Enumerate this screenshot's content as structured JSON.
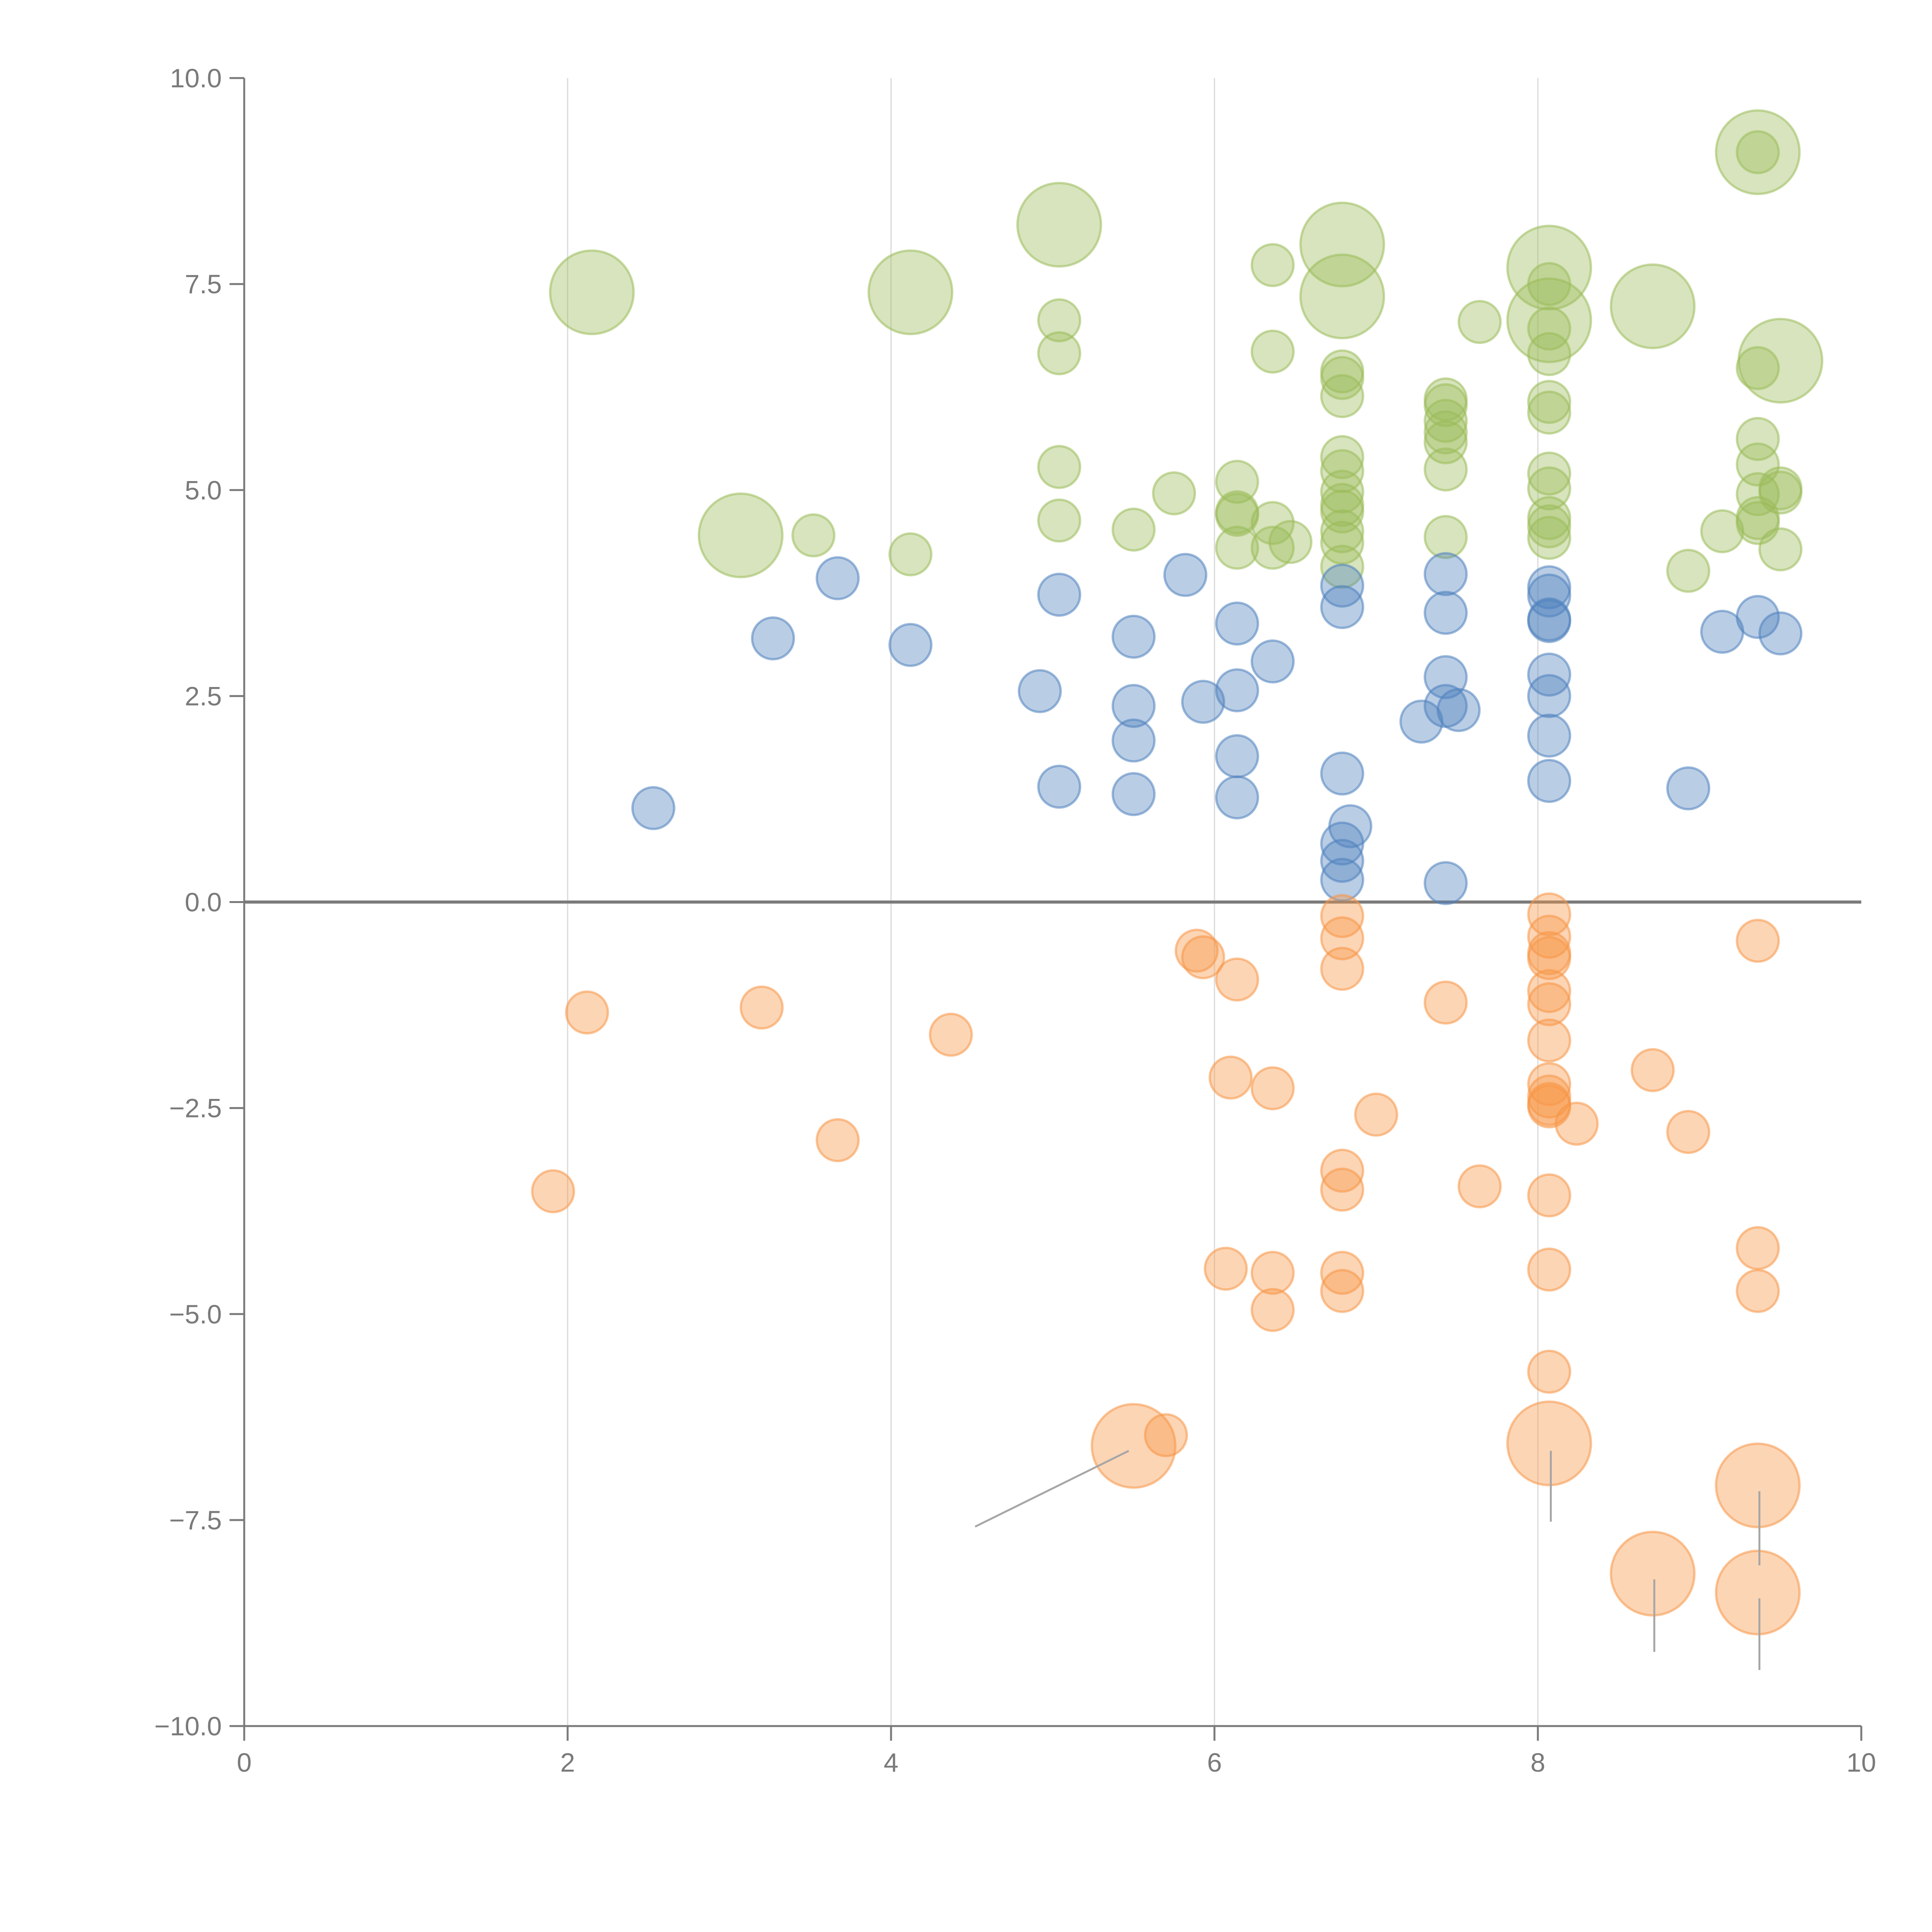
{
  "chart_data": {
    "type": "scatter",
    "title": "",
    "xlabel": "",
    "ylabel": "",
    "xlim": [
      0,
      10
    ],
    "ylim": [
      -10,
      10
    ],
    "x_ticks": [
      "0",
      "2",
      "4",
      "6",
      "8",
      "10"
    ],
    "x_tick_values": [
      0,
      2,
      4,
      6,
      8,
      10
    ],
    "y_ticks": [
      "10.0",
      "7.5",
      "5.0",
      "2.5",
      "0.0",
      "−2.5",
      "−5.0",
      "−7.5",
      "−10.0"
    ],
    "y_tick_values": [
      10,
      7.5,
      5,
      2.5,
      0,
      -2.5,
      -5,
      -7.5,
      -10
    ],
    "vertical_grid": true,
    "zero_line": true,
    "legend": "none",
    "series": [
      {
        "color": "#9bbb59",
        "points": [
          [
            2.15,
            7.4,
            3
          ],
          [
            4.12,
            7.4,
            3
          ],
          [
            5.04,
            8.22,
            3
          ],
          [
            6.79,
            7.98,
            3
          ],
          [
            6.79,
            7.35,
            3
          ],
          [
            8.07,
            7.7,
            3
          ],
          [
            8.07,
            7.06,
            3
          ],
          [
            8.71,
            7.23,
            3
          ],
          [
            9.36,
            9.1,
            3
          ],
          [
            9.5,
            6.57,
            3
          ],
          [
            3.07,
            4.45,
            3
          ],
          [
            6.36,
            7.73,
            1
          ],
          [
            5.04,
            7.06,
            1
          ],
          [
            5.04,
            6.66,
            1
          ],
          [
            6.36,
            6.68,
            1
          ],
          [
            7.64,
            7.04,
            1
          ],
          [
            6.79,
            6.44,
            1
          ],
          [
            6.79,
            6.36,
            1
          ],
          [
            6.79,
            6.14,
            1
          ],
          [
            7.43,
            6.1,
            1
          ],
          [
            7.43,
            6.03,
            1
          ],
          [
            7.43,
            5.84,
            1
          ],
          [
            7.43,
            5.7,
            1
          ],
          [
            7.43,
            5.58,
            1
          ],
          [
            7.43,
            5.25,
            1
          ],
          [
            8.07,
            6.07,
            1
          ],
          [
            8.07,
            5.94,
            1
          ],
          [
            8.07,
            6.96,
            1
          ],
          [
            8.07,
            6.65,
            1
          ],
          [
            8.07,
            7.5,
            1
          ],
          [
            9.36,
            6.48,
            1
          ],
          [
            9.36,
            5.62,
            1
          ],
          [
            9.36,
            5.31,
            1
          ],
          [
            9.36,
            4.95,
            1
          ],
          [
            9.36,
            4.66,
            1
          ],
          [
            9.36,
            4.6,
            1
          ],
          [
            9.5,
            5.02,
            1
          ],
          [
            9.5,
            4.97,
            1
          ],
          [
            9.5,
            4.28,
            1
          ],
          [
            9.14,
            4.5,
            1
          ],
          [
            8.93,
            4.02,
            1
          ],
          [
            9.36,
            9.1,
            1
          ],
          [
            5.04,
            5.28,
            1
          ],
          [
            5.04,
            4.63,
            1
          ],
          [
            5.5,
            4.52,
            1
          ],
          [
            5.75,
            4.96,
            1
          ],
          [
            6.14,
            5.1,
            1
          ],
          [
            6.14,
            4.73,
            1
          ],
          [
            6.14,
            4.7,
            1
          ],
          [
            6.14,
            4.3,
            1
          ],
          [
            6.36,
            4.6,
            1
          ],
          [
            6.36,
            4.3,
            1
          ],
          [
            6.47,
            4.37,
            1
          ],
          [
            6.79,
            5.4,
            1
          ],
          [
            6.79,
            5.23,
            1
          ],
          [
            6.79,
            4.98,
            1
          ],
          [
            6.79,
            4.82,
            1
          ],
          [
            6.79,
            4.74,
            1
          ],
          [
            6.79,
            4.5,
            1
          ],
          [
            6.79,
            4.36,
            1
          ],
          [
            6.79,
            4.07,
            1
          ],
          [
            7.43,
            4.43,
            1
          ],
          [
            8.07,
            5.2,
            1
          ],
          [
            8.07,
            5.02,
            1
          ],
          [
            8.07,
            4.66,
            1
          ],
          [
            8.07,
            4.56,
            1
          ],
          [
            8.07,
            4.42,
            1
          ],
          [
            3.52,
            4.45,
            1
          ],
          [
            4.12,
            4.22,
            1
          ]
        ]
      },
      {
        "color": "#4f81bd",
        "points": [
          [
            3.67,
            3.93,
            1
          ],
          [
            3.27,
            3.2,
            1
          ],
          [
            4.12,
            3.12,
            1
          ],
          [
            2.53,
            1.14,
            1
          ],
          [
            4.92,
            2.56,
            1
          ],
          [
            5.04,
            3.73,
            1
          ],
          [
            5.04,
            1.4,
            1
          ],
          [
            5.5,
            3.22,
            1
          ],
          [
            5.5,
            2.38,
            1
          ],
          [
            5.5,
            1.96,
            1
          ],
          [
            5.5,
            1.31,
            1
          ],
          [
            5.82,
            3.97,
            1
          ],
          [
            5.93,
            2.43,
            1
          ],
          [
            6.14,
            3.38,
            1
          ],
          [
            6.14,
            2.57,
            1
          ],
          [
            6.14,
            1.77,
            1
          ],
          [
            6.14,
            1.27,
            1
          ],
          [
            6.36,
            2.92,
            1
          ],
          [
            6.79,
            3.84,
            1
          ],
          [
            6.79,
            3.58,
            1
          ],
          [
            6.79,
            1.56,
            1
          ],
          [
            6.84,
            0.92,
            1
          ],
          [
            6.79,
            0.71,
            1
          ],
          [
            6.79,
            0.5,
            1
          ],
          [
            6.79,
            0.27,
            1
          ],
          [
            7.28,
            2.19,
            1
          ],
          [
            7.43,
            3.98,
            1
          ],
          [
            7.43,
            3.51,
            1
          ],
          [
            7.43,
            2.73,
            1
          ],
          [
            7.43,
            2.38,
            1
          ],
          [
            7.51,
            2.33,
            1
          ],
          [
            7.43,
            0.23,
            1
          ],
          [
            8.07,
            3.82,
            1
          ],
          [
            8.07,
            3.72,
            1
          ],
          [
            8.07,
            3.43,
            1
          ],
          [
            8.07,
            3.41,
            1
          ],
          [
            8.07,
            2.76,
            1
          ],
          [
            8.07,
            2.5,
            1
          ],
          [
            8.07,
            2.02,
            1
          ],
          [
            8.07,
            1.47,
            1
          ],
          [
            8.93,
            1.38,
            1
          ],
          [
            9.14,
            3.28,
            1
          ],
          [
            9.36,
            3.46,
            1
          ],
          [
            9.5,
            3.26,
            1
          ]
        ]
      },
      {
        "color": "#f79646",
        "points": [
          [
            2.12,
            -1.34,
            1
          ],
          [
            1.91,
            -3.51,
            1
          ],
          [
            3.2,
            -1.28,
            1
          ],
          [
            3.67,
            -2.89,
            1
          ],
          [
            4.37,
            -1.61,
            1
          ],
          [
            5.89,
            -0.59,
            1
          ],
          [
            5.93,
            -0.67,
            1
          ],
          [
            6.14,
            -0.94,
            1
          ],
          [
            6.1,
            -2.13,
            1
          ],
          [
            6.36,
            -2.26,
            1
          ],
          [
            6.07,
            -4.45,
            1
          ],
          [
            6.36,
            -4.5,
            1
          ],
          [
            6.36,
            -4.95,
            1
          ],
          [
            6.79,
            -0.17,
            1
          ],
          [
            6.79,
            -0.44,
            1
          ],
          [
            6.79,
            -0.81,
            1
          ],
          [
            6.79,
            -3.26,
            1
          ],
          [
            6.79,
            -3.49,
            1
          ],
          [
            6.79,
            -4.5,
            1
          ],
          [
            6.79,
            -4.72,
            1
          ],
          [
            7.0,
            -2.58,
            1
          ],
          [
            7.43,
            -1.22,
            1
          ],
          [
            7.64,
            -3.45,
            1
          ],
          [
            8.07,
            -0.15,
            1
          ],
          [
            8.07,
            -0.42,
            1
          ],
          [
            8.07,
            -0.62,
            1
          ],
          [
            8.07,
            -0.68,
            1
          ],
          [
            8.07,
            -1.08,
            1
          ],
          [
            8.07,
            -1.24,
            1
          ],
          [
            8.07,
            -1.68,
            1
          ],
          [
            8.07,
            -2.21,
            1
          ],
          [
            8.07,
            -2.36,
            1
          ],
          [
            8.07,
            -2.45,
            1
          ],
          [
            8.07,
            -2.48,
            1
          ],
          [
            8.24,
            -2.69,
            1
          ],
          [
            8.07,
            -3.56,
            1
          ],
          [
            8.07,
            -4.46,
            1
          ],
          [
            8.07,
            -5.7,
            1
          ],
          [
            8.71,
            -2.04,
            1
          ],
          [
            8.93,
            -2.79,
            1
          ],
          [
            9.36,
            -0.47,
            1
          ],
          [
            9.36,
            -4.2,
            1
          ],
          [
            9.36,
            -4.72,
            1
          ],
          [
            5.7,
            -6.47,
            1
          ],
          [
            5.5,
            -6.6,
            3
          ],
          [
            8.07,
            -6.57,
            3
          ],
          [
            9.36,
            -7.08,
            3
          ],
          [
            8.71,
            -8.15,
            3
          ],
          [
            9.36,
            -8.38,
            3
          ]
        ],
        "label_lines": [
          [
            [
              5.47,
              -6.66
            ],
            [
              4.52,
              -7.58
            ]
          ],
          [
            [
              8.08,
              -6.66
            ],
            [
              8.08,
              -7.52
            ]
          ],
          [
            [
              9.37,
              -7.15
            ],
            [
              9.37,
              -8.05
            ]
          ],
          [
            [
              8.72,
              -8.22
            ],
            [
              8.72,
              -9.1
            ]
          ],
          [
            [
              9.37,
              -8.45
            ],
            [
              9.37,
              -9.32
            ]
          ]
        ]
      }
    ],
    "bubble_radius_units": {
      "small": 1,
      "large": 3
    }
  },
  "colors": {
    "green": "#9bbb59",
    "blue": "#4f81bd",
    "orange": "#f79646",
    "axis": "#7a7a7a",
    "grid": "#d9d9d9"
  }
}
